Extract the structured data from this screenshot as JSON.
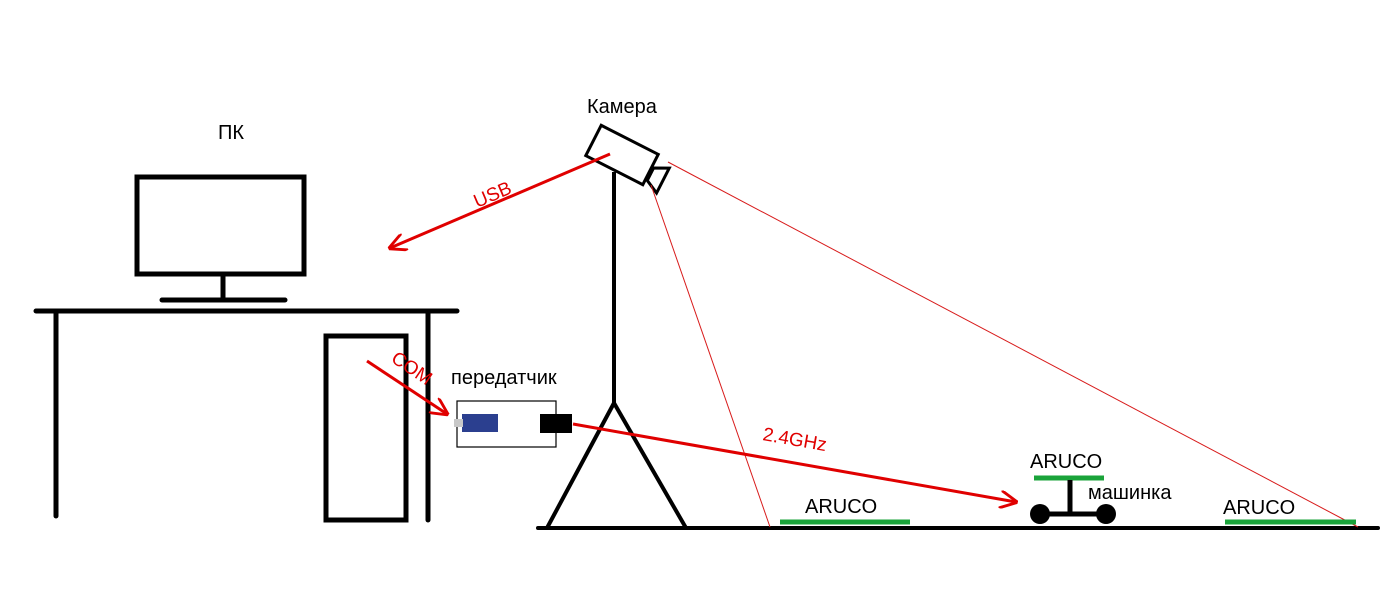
{
  "labels": {
    "pc": "ПК",
    "camera": "Камера",
    "transmitter": "передатчик",
    "car": "машинка",
    "aruco_left": "ARUCO",
    "aruco_car": "ARUCO",
    "aruco_right": "ARUCO"
  },
  "connections": {
    "usb": "USB",
    "com": "COM",
    "radio": "2.4GHz"
  },
  "colors": {
    "stroke": "#000000",
    "signal": "#e00000",
    "marker": "#1aa33a",
    "dongle_body": "#2b3f8f",
    "dongle_tip": "#c8c8c8",
    "fov": "#d81b1b"
  }
}
